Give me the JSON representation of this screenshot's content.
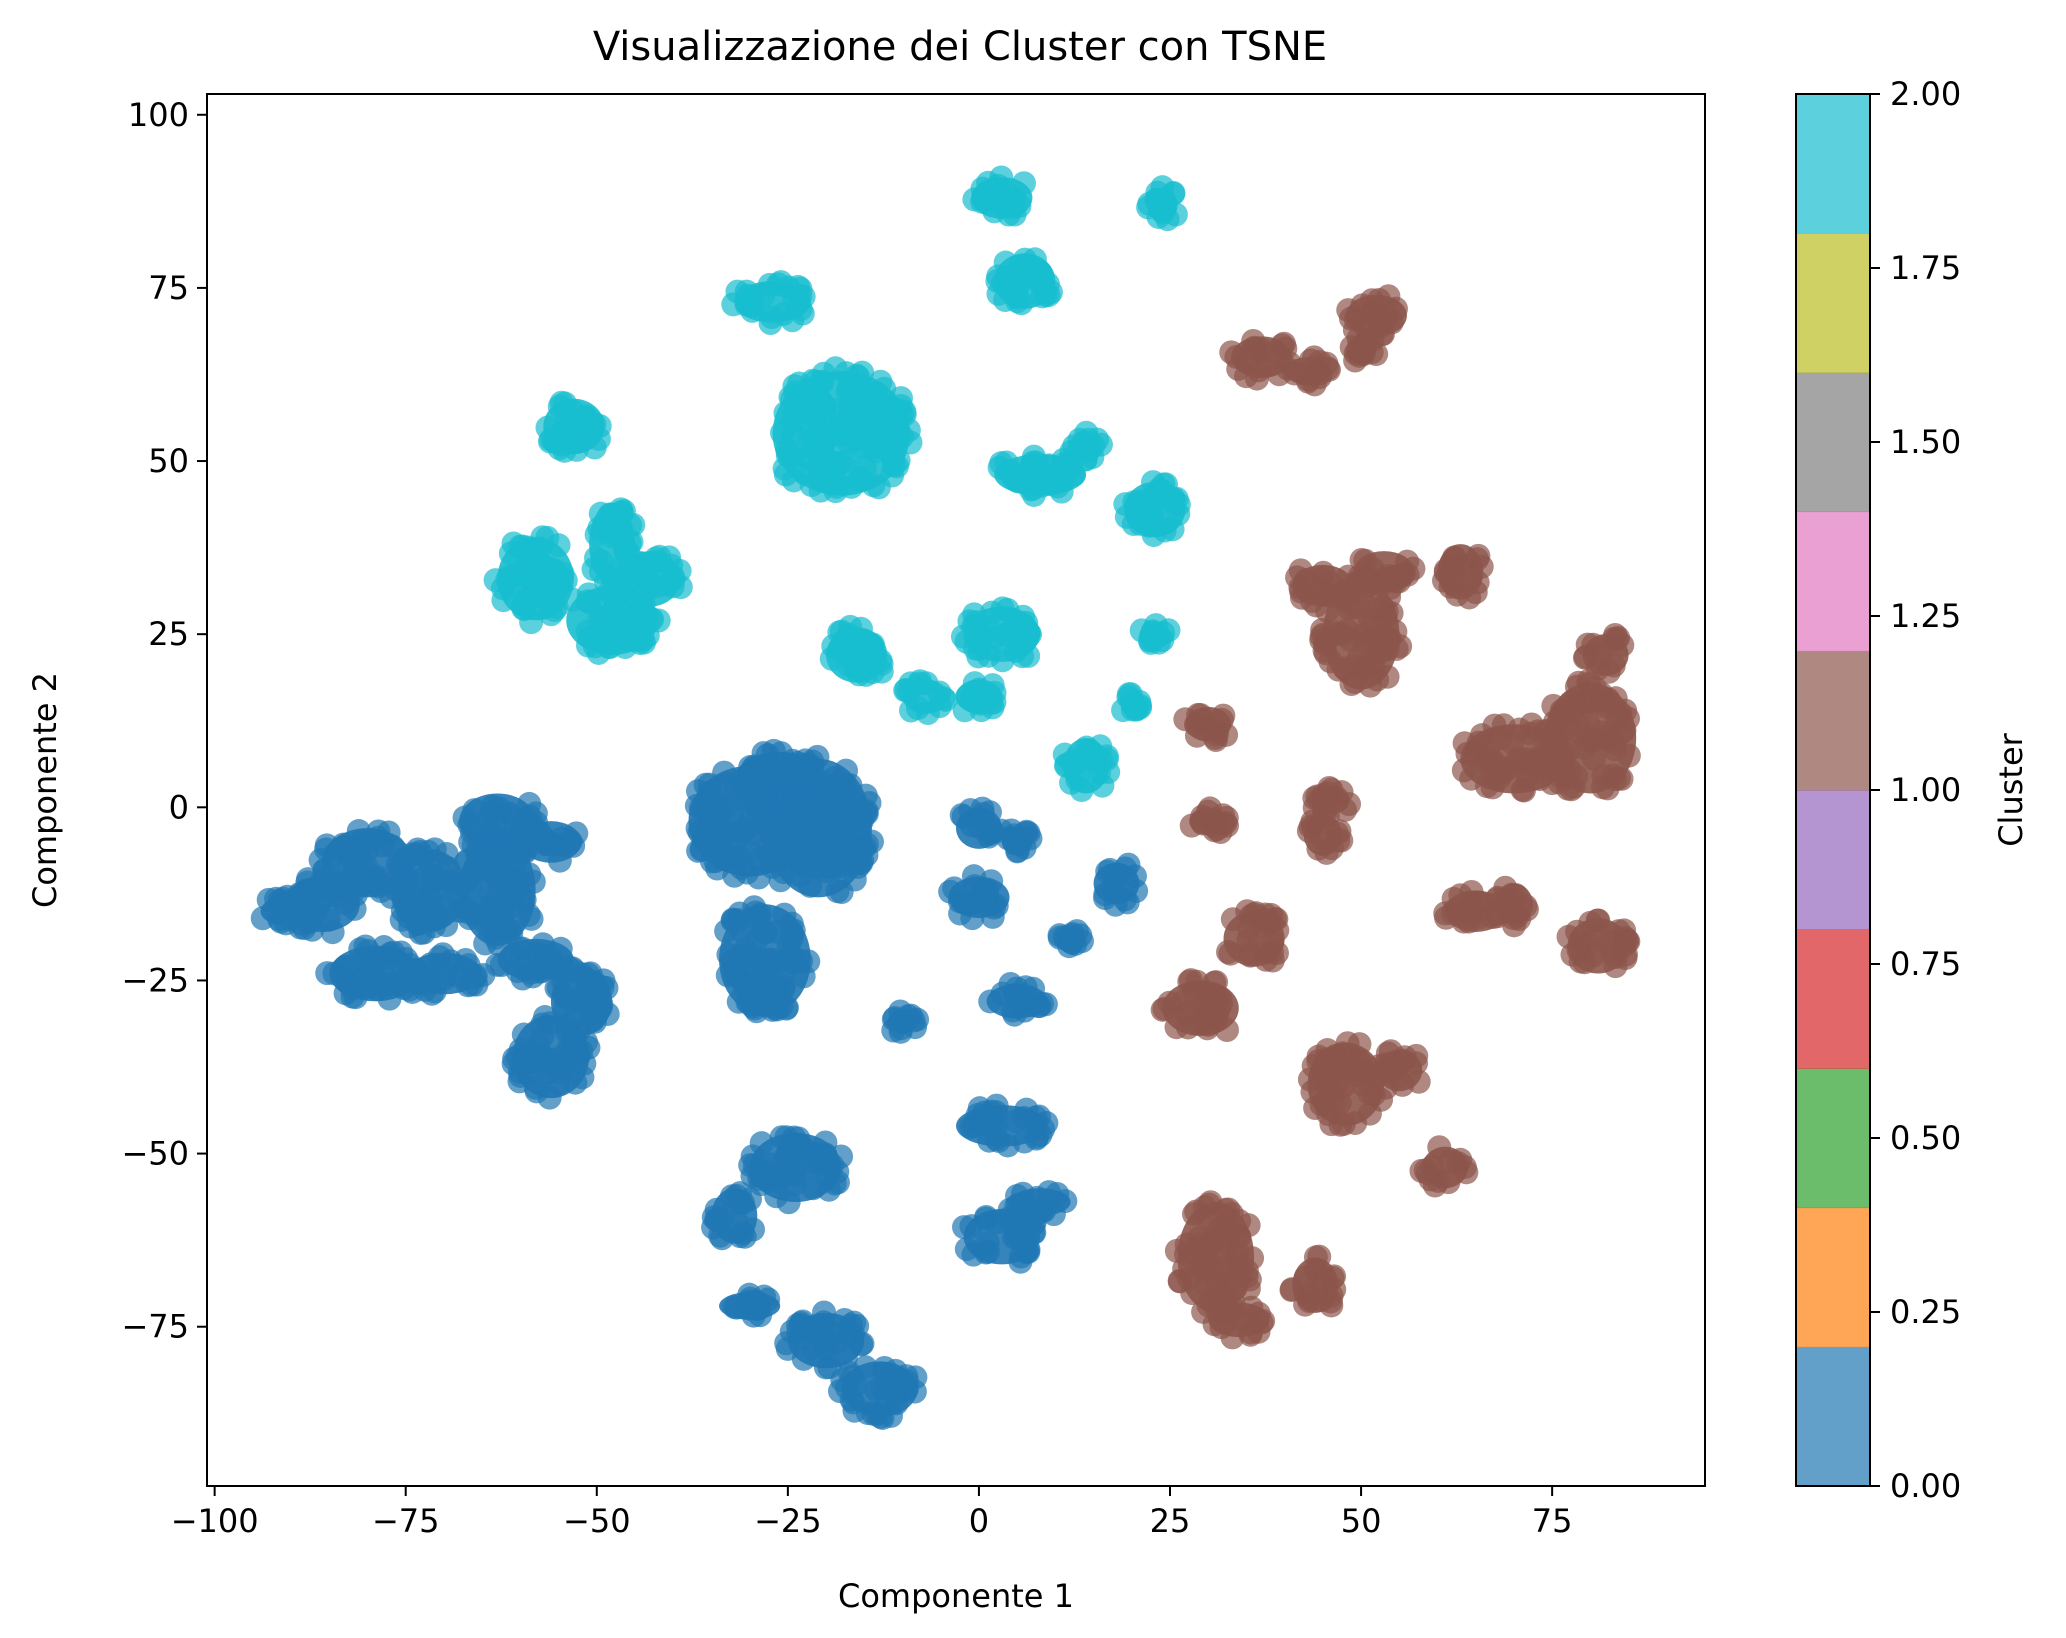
{
  "chart_data": {
    "type": "scatter",
    "title": "Visualizzazione dei Cluster con TSNE",
    "xlabel": "Componente 1",
    "ylabel": "Componente 2",
    "xlim": [
      -101,
      95
    ],
    "ylim": [
      -98,
      103
    ],
    "xticks": [
      -100,
      -75,
      -50,
      -25,
      0,
      25,
      50,
      75
    ],
    "xtick_labels": [
      "−100",
      "−75",
      "−50",
      "−25",
      "0",
      "25",
      "50",
      "75"
    ],
    "yticks": [
      -75,
      -50,
      -25,
      0,
      25,
      50,
      75,
      100
    ],
    "ytick_labels": [
      "−75",
      "−50",
      "−25",
      "0",
      "25",
      "50",
      "75",
      "100"
    ],
    "grid": false,
    "colorbar": {
      "label": "Cluster",
      "range": [
        0,
        2
      ],
      "ticks": [
        0,
        0.25,
        0.5,
        0.75,
        1.0,
        1.25,
        1.5,
        1.75,
        2.0
      ],
      "tick_labels": [
        "0.00",
        "0.25",
        "0.50",
        "0.75",
        "1.00",
        "1.25",
        "1.50",
        "1.75",
        "2.00"
      ],
      "colors": [
        "#1f77b4",
        "#ff7f0e",
        "#2ca02c",
        "#d62728",
        "#9467bd",
        "#8c564b",
        "#e377c2",
        "#7f7f7f",
        "#bcbd22",
        "#17becf"
      ]
    },
    "series": [
      {
        "cluster": 0,
        "color": "#1f77b4",
        "regions": [
          {
            "x": -80,
            "y": -8,
            "rx": 6,
            "ry": 5
          },
          {
            "x": -86,
            "y": -14,
            "rx": 5,
            "ry": 4
          },
          {
            "x": -91,
            "y": -15,
            "rx": 3,
            "ry": 2
          },
          {
            "x": -72,
            "y": -12,
            "rx": 5,
            "ry": 6
          },
          {
            "x": -63,
            "y": -2,
            "rx": 5,
            "ry": 4
          },
          {
            "x": -63,
            "y": -12,
            "rx": 5,
            "ry": 8
          },
          {
            "x": -56,
            "y": -5,
            "rx": 4,
            "ry": 3
          },
          {
            "x": -79,
            "y": -24,
            "rx": 6,
            "ry": 4
          },
          {
            "x": -70,
            "y": -24,
            "rx": 5,
            "ry": 3
          },
          {
            "x": -58,
            "y": -22,
            "rx": 5,
            "ry": 3
          },
          {
            "x": -56,
            "y": -36,
            "rx": 5,
            "ry": 6
          },
          {
            "x": -52,
            "y": -28,
            "rx": 4,
            "ry": 5
          },
          {
            "x": -30,
            "y": -2,
            "rx": 8,
            "ry": 8
          },
          {
            "x": -21,
            "y": -3,
            "rx": 7,
            "ry": 10
          },
          {
            "x": -26,
            "y": 4,
            "rx": 6,
            "ry": 4
          },
          {
            "x": -28,
            "y": -22,
            "rx": 6,
            "ry": 8
          },
          {
            "x": 0,
            "y": -3,
            "rx": 3,
            "ry": 3
          },
          {
            "x": 5,
            "y": -5,
            "rx": 2,
            "ry": 2
          },
          {
            "x": 0,
            "y": -13,
            "rx": 4,
            "ry": 3
          },
          {
            "x": 18,
            "y": -11,
            "rx": 3,
            "ry": 3
          },
          {
            "x": 12,
            "y": -19,
            "rx": 1.5,
            "ry": 1.5
          },
          {
            "x": -10,
            "y": -31,
            "rx": 2,
            "ry": 1.5
          },
          {
            "x": 5,
            "y": -28,
            "rx": 4,
            "ry": 2.5
          },
          {
            "x": -24,
            "y": -52,
            "rx": 6,
            "ry": 5
          },
          {
            "x": -32,
            "y": -59,
            "rx": 3,
            "ry": 4
          },
          {
            "x": 3,
            "y": -46,
            "rx": 6,
            "ry": 3
          },
          {
            "x": 3,
            "y": -62,
            "rx": 5,
            "ry": 4
          },
          {
            "x": 8,
            "y": -57,
            "rx": 4,
            "ry": 2
          },
          {
            "x": -30,
            "y": -72,
            "rx": 4,
            "ry": 2
          },
          {
            "x": -20,
            "y": -77,
            "rx": 5,
            "ry": 4
          },
          {
            "x": -13,
            "y": -84,
            "rx": 5,
            "ry": 4
          }
        ]
      },
      {
        "cluster": 1,
        "color": "#8c564b",
        "regions": [
          {
            "x": 37,
            "y": 65,
            "rx": 4,
            "ry": 3
          },
          {
            "x": 43,
            "y": 63,
            "rx": 3,
            "ry": 2
          },
          {
            "x": 52,
            "y": 71,
            "rx": 4,
            "ry": 3
          },
          {
            "x": 50,
            "y": 66,
            "rx": 2,
            "ry": 2
          },
          {
            "x": 45,
            "y": 32,
            "rx": 4,
            "ry": 3
          },
          {
            "x": 50,
            "y": 25,
            "rx": 5,
            "ry": 8
          },
          {
            "x": 53,
            "y": 34,
            "rx": 4,
            "ry": 3
          },
          {
            "x": 63,
            "y": 34,
            "rx": 3,
            "ry": 4
          },
          {
            "x": 30,
            "y": 12,
            "rx": 3,
            "ry": 2.5
          },
          {
            "x": 30,
            "y": -2,
            "rx": 2.5,
            "ry": 2
          },
          {
            "x": 46,
            "y": 1,
            "rx": 2.5,
            "ry": 2
          },
          {
            "x": 45,
            "y": -4,
            "rx": 2.5,
            "ry": 3
          },
          {
            "x": 70,
            "y": 7,
            "rx": 7,
            "ry": 5
          },
          {
            "x": 80,
            "y": 10,
            "rx": 6,
            "ry": 8
          },
          {
            "x": 82,
            "y": 22,
            "rx": 3,
            "ry": 3
          },
          {
            "x": 65,
            "y": -15,
            "rx": 4,
            "ry": 3
          },
          {
            "x": 70,
            "y": -14,
            "rx": 2.5,
            "ry": 3
          },
          {
            "x": 81,
            "y": -20,
            "rx": 4,
            "ry": 4
          },
          {
            "x": 29,
            "y": -29,
            "rx": 5,
            "ry": 4
          },
          {
            "x": 36,
            "y": -19,
            "rx": 4,
            "ry": 4
          },
          {
            "x": 48,
            "y": -40,
            "rx": 5,
            "ry": 6
          },
          {
            "x": 55,
            "y": -38,
            "rx": 3,
            "ry": 3
          },
          {
            "x": 61,
            "y": -52,
            "rx": 3,
            "ry": 3
          },
          {
            "x": 31,
            "y": -65,
            "rx": 5,
            "ry": 8
          },
          {
            "x": 34,
            "y": -74,
            "rx": 4,
            "ry": 2.5
          },
          {
            "x": 44,
            "y": -69,
            "rx": 3,
            "ry": 4
          }
        ]
      },
      {
        "cluster": 2,
        "color": "#17becf",
        "regions": [
          {
            "x": 3,
            "y": 88,
            "rx": 4,
            "ry": 3
          },
          {
            "x": 24,
            "y": 87,
            "rx": 2,
            "ry": 2.5
          },
          {
            "x": 6,
            "y": 76,
            "rx": 4,
            "ry": 4
          },
          {
            "x": -27,
            "y": 73,
            "rx": 5,
            "ry": 3
          },
          {
            "x": -18,
            "y": 54,
            "rx": 9,
            "ry": 9
          },
          {
            "x": -53,
            "y": 55,
            "rx": 4,
            "ry": 4
          },
          {
            "x": -48,
            "y": 38,
            "rx": 3,
            "ry": 6
          },
          {
            "x": -58,
            "y": 33,
            "rx": 5,
            "ry": 6
          },
          {
            "x": -48,
            "y": 27,
            "rx": 6,
            "ry": 5
          },
          {
            "x": -43,
            "y": 33,
            "rx": 4,
            "ry": 4
          },
          {
            "x": 8,
            "y": 48,
            "rx": 6,
            "ry": 3
          },
          {
            "x": 23,
            "y": 43,
            "rx": 4,
            "ry": 4
          },
          {
            "x": 14,
            "y": 52,
            "rx": 2,
            "ry": 2
          },
          {
            "x": -16,
            "y": 22,
            "rx": 4,
            "ry": 4
          },
          {
            "x": -7,
            "y": 16,
            "rx": 3,
            "ry": 2.5
          },
          {
            "x": 3,
            "y": 25,
            "rx": 5,
            "ry": 4
          },
          {
            "x": 0,
            "y": 16,
            "rx": 3,
            "ry": 2.5
          },
          {
            "x": 23,
            "y": 25,
            "rx": 2,
            "ry": 1.5
          },
          {
            "x": 20,
            "y": 15,
            "rx": 1.5,
            "ry": 1.5
          },
          {
            "x": 14,
            "y": 6,
            "rx": 3,
            "ry": 4
          }
        ]
      }
    ]
  }
}
